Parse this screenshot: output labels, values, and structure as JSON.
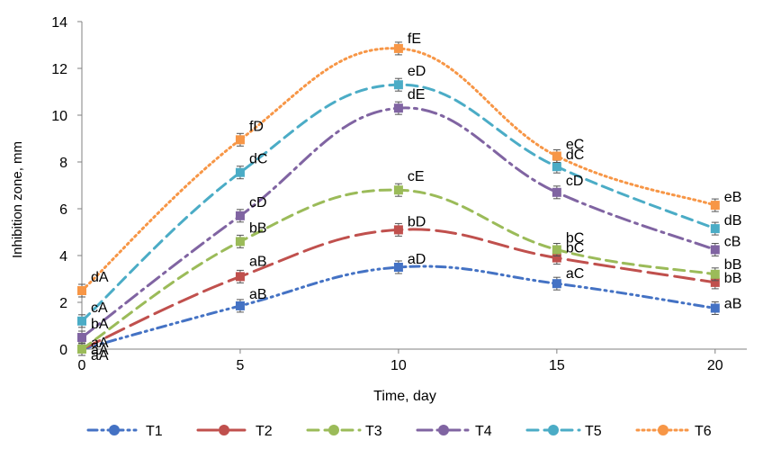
{
  "chart_data": {
    "type": "line",
    "xlabel": "Time, day",
    "ylabel": "Inhibition zone, mm",
    "xlim": [
      0,
      21
    ],
    "ylim": [
      0,
      14
    ],
    "x_ticks": [
      "0",
      "5",
      "10",
      "15",
      "20"
    ],
    "y_ticks": [
      "0",
      "2",
      "4",
      "6",
      "8",
      "10",
      "12",
      "14"
    ],
    "grid": false,
    "legend_position": "bottom",
    "x": [
      0,
      5,
      10,
      15,
      20
    ],
    "series": [
      {
        "name": "T1",
        "color": "#4472C4",
        "dash": "dash-dot-dot",
        "values": [
          0.0,
          1.85,
          3.5,
          2.8,
          1.75
        ],
        "labels": [
          "aA",
          "aB",
          "aD",
          "aC",
          "aB"
        ]
      },
      {
        "name": "T2",
        "color": "#C0504D",
        "dash": "long-dash",
        "values": [
          0.0,
          3.1,
          5.1,
          3.9,
          2.85
        ],
        "labels": [
          "aA",
          "aB",
          "bD",
          "bC",
          "bB"
        ]
      },
      {
        "name": "T3",
        "color": "#9BBB59",
        "dash": "dash",
        "values": [
          0.0,
          4.6,
          6.8,
          4.25,
          3.2
        ],
        "labels": [
          "aA",
          "bB",
          "cE",
          "bC",
          "bB"
        ]
      },
      {
        "name": "T4",
        "color": "#8064A2",
        "dash": "dash-dot",
        "values": [
          0.5,
          5.7,
          10.3,
          6.7,
          4.25
        ],
        "labels": [
          "bA",
          "cD",
          "dE",
          "cD",
          "cB"
        ]
      },
      {
        "name": "T5",
        "color": "#4BACC6",
        "dash": "dash",
        "values": [
          1.2,
          7.55,
          11.3,
          7.8,
          5.15
        ],
        "labels": [
          "cA",
          "dC",
          "eD",
          "dC",
          "dB"
        ]
      },
      {
        "name": "T6",
        "color": "#F79646",
        "dash": "dot",
        "values": [
          2.5,
          8.95,
          12.85,
          8.25,
          6.15
        ],
        "labels": [
          "dA",
          "fD",
          "fE",
          "eC",
          "eB"
        ]
      }
    ]
  }
}
